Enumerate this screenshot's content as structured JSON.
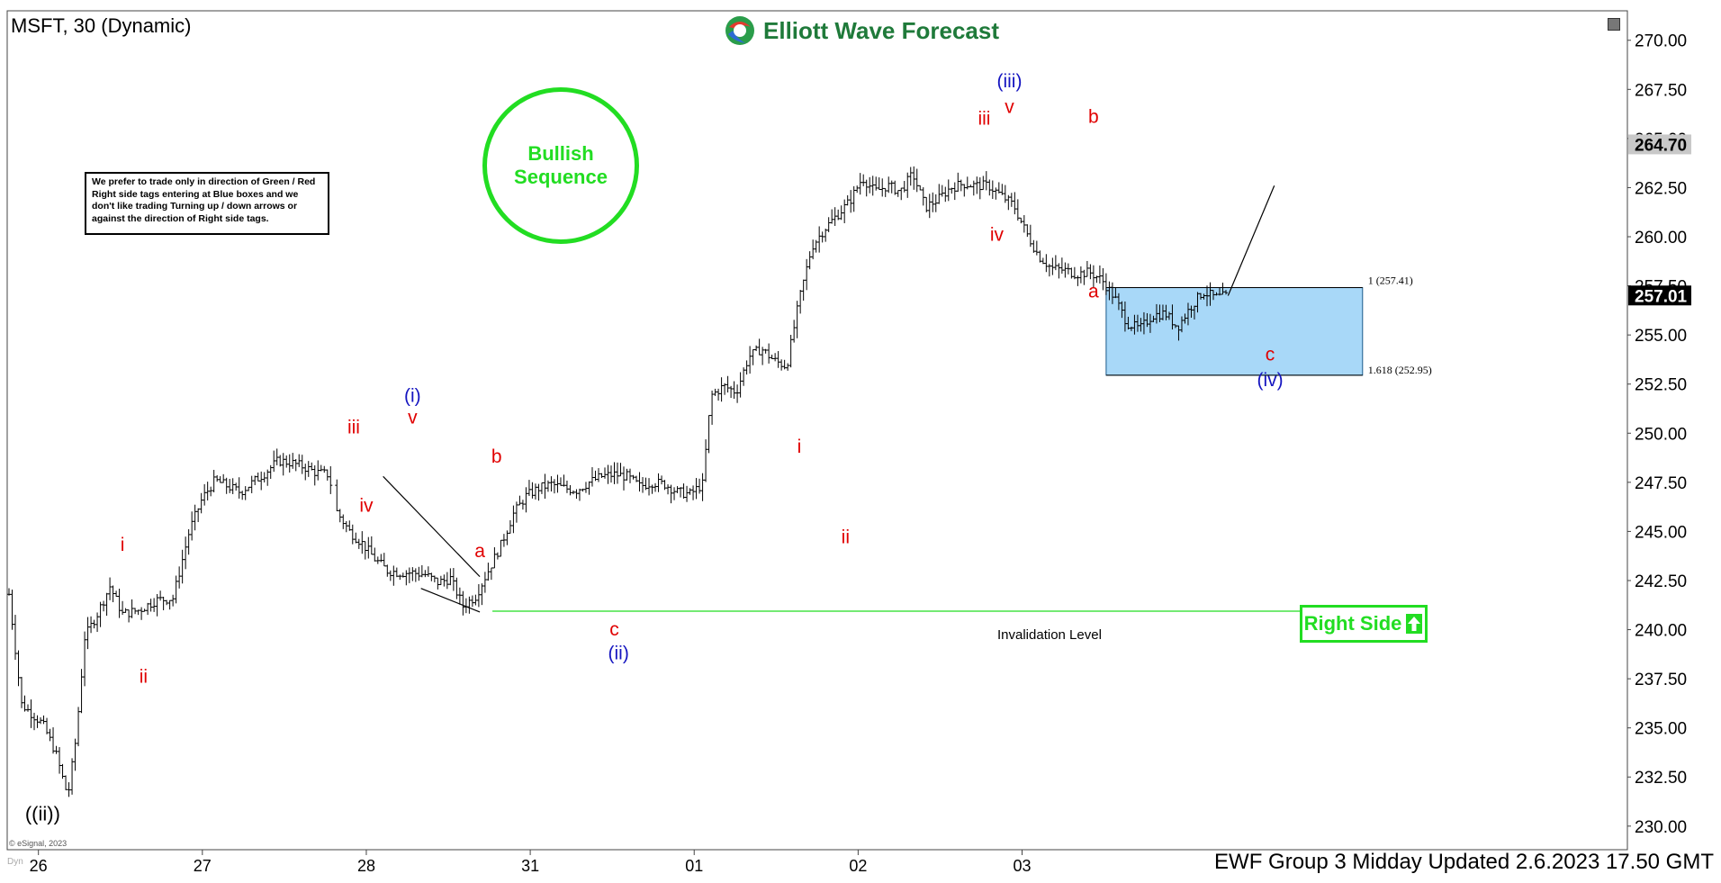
{
  "window": {
    "symbol_title": "MSFT, 30 (Dynamic)",
    "logo_text": "Elliott Wave Forecast",
    "logo_icon": "ewf-globe-icon",
    "footer": "EWF Group 3 Midday Updated 2.6.2023 17.50 GMT",
    "copyright": "© eSignal, 2023",
    "corner_label": "Dyn"
  },
  "annotations": {
    "note_text": "We prefer to trade only in direction of Green / Red Right side tags entering at Blue boxes and we don't like trading Turning up / down arrows or against the direction of Right side tags.",
    "bullish_text": "Bullish\nSequence",
    "right_side_text": "Right Side",
    "invalidation_label": "Invalidation Level",
    "invalidation_value": "240.94",
    "box_upper_label": "1 (257.41)",
    "box_lower_label": "1.618 (252.95)"
  },
  "colors": {
    "wave_red": "#e00000",
    "wave_blue": "#1515c0",
    "green": "#22dd22",
    "blue_box_fill": "#a8d8f8",
    "price_bar": "#000000"
  },
  "chart_data": {
    "type": "ohlc",
    "title": "MSFT, 30 (Dynamic)",
    "ylim": [
      228.8,
      271.5
    ],
    "x_ticks": [
      {
        "label": "26",
        "x": 7
      },
      {
        "label": "27",
        "x": 46
      },
      {
        "label": "28",
        "x": 85
      },
      {
        "label": "31",
        "x": 124
      },
      {
        "label": "01",
        "x": 163
      },
      {
        "label": "02",
        "x": 202
      },
      {
        "label": "03",
        "x": 241
      }
    ],
    "xlim": [
      0,
      385
    ],
    "y_ticks": [
      "270.00",
      "267.50",
      "265.00",
      "262.50",
      "260.00",
      "257.50",
      "255.00",
      "252.50",
      "250.00",
      "247.50",
      "245.00",
      "242.50",
      "240.00",
      "237.50",
      "235.00",
      "232.50",
      "230.00"
    ],
    "last_price": "257.01",
    "high_marker": "264.70",
    "price_path": [
      [
        0,
        241.8
      ],
      [
        3,
        236.2
      ],
      [
        8,
        235.2
      ],
      [
        11,
        233.8
      ],
      [
        14,
        231.5
      ],
      [
        16,
        234.6
      ],
      [
        18,
        239.6
      ],
      [
        21,
        240.8
      ],
      [
        24,
        242.2
      ],
      [
        27,
        240.8
      ],
      [
        31,
        241.0
      ],
      [
        35,
        241.5
      ],
      [
        39,
        241.6
      ],
      [
        43,
        245.1
      ],
      [
        46,
        246.7
      ],
      [
        49,
        247.6
      ],
      [
        52,
        247.3
      ],
      [
        55,
        247.0
      ],
      [
        58,
        247.5
      ],
      [
        61,
        248.0
      ],
      [
        64,
        248.6
      ],
      [
        67,
        248.5
      ],
      [
        70,
        248.3
      ],
      [
        73,
        248.0
      ],
      [
        76,
        247.9
      ],
      [
        78,
        246.0
      ],
      [
        81,
        245.0
      ],
      [
        84,
        244.4
      ],
      [
        87,
        243.6
      ],
      [
        90,
        243.0
      ],
      [
        93,
        242.9
      ],
      [
        96,
        242.9
      ],
      [
        99,
        242.8
      ],
      [
        102,
        242.4
      ],
      [
        105,
        242.6
      ],
      [
        108,
        241.2
      ],
      [
        111,
        241.7
      ],
      [
        114,
        243.0
      ],
      [
        117,
        244.3
      ],
      [
        120,
        245.9
      ],
      [
        123,
        246.8
      ],
      [
        126,
        247.2
      ],
      [
        129,
        247.4
      ],
      [
        132,
        247.2
      ],
      [
        135,
        247.1
      ],
      [
        138,
        247.5
      ],
      [
        141,
        247.8
      ],
      [
        144,
        247.9
      ],
      [
        147,
        247.8
      ],
      [
        150,
        247.3
      ],
      [
        153,
        247.5
      ],
      [
        156,
        247.4
      ],
      [
        159,
        247.0
      ],
      [
        162,
        246.9
      ],
      [
        165,
        247.4
      ],
      [
        167,
        251.9
      ],
      [
        170,
        252.4
      ],
      [
        173,
        252.1
      ],
      [
        176,
        253.9
      ],
      [
        179,
        254.3
      ],
      [
        182,
        253.7
      ],
      [
        185,
        253.4
      ],
      [
        188,
        256.8
      ],
      [
        191,
        259.5
      ],
      [
        194,
        260.4
      ],
      [
        197,
        261.1
      ],
      [
        200,
        261.8
      ],
      [
        203,
        263.0
      ],
      [
        206,
        262.3
      ],
      [
        209,
        262.6
      ],
      [
        212,
        262.3
      ],
      [
        215,
        263.2
      ],
      [
        218,
        261.5
      ],
      [
        221,
        261.9
      ],
      [
        224,
        262.5
      ],
      [
        227,
        262.7
      ],
      [
        230,
        262.6
      ],
      [
        233,
        262.6
      ],
      [
        236,
        262.1
      ],
      [
        239,
        261.6
      ],
      [
        242,
        260.2
      ],
      [
        245,
        259.0
      ],
      [
        248,
        258.4
      ],
      [
        251,
        258.3
      ],
      [
        254,
        258.1
      ],
      [
        257,
        258.2
      ],
      [
        260,
        257.8
      ],
      [
        263,
        256.9
      ],
      [
        266,
        255.6
      ],
      [
        269,
        255.3
      ],
      [
        272,
        256.0
      ],
      [
        275,
        256.1
      ],
      [
        278,
        255.4
      ],
      [
        281,
        256.4
      ],
      [
        284,
        257.2
      ],
      [
        287,
        256.9
      ],
      [
        290,
        257.0
      ]
    ],
    "lines": [
      {
        "name": "projection-arrow",
        "from": [
          290,
          257.0
        ],
        "to": [
          301,
          262.6
        ]
      },
      {
        "name": "triangle-upper",
        "from": [
          89,
          247.8
        ],
        "to": [
          112,
          242.7
        ]
      },
      {
        "name": "triangle-lower",
        "from": [
          98,
          242.1
        ],
        "to": [
          112,
          240.9
        ]
      }
    ],
    "invalidation": {
      "y": 240.94,
      "x_from": 115,
      "x_to": 320
    },
    "blue_box": {
      "x_from": 261,
      "x_to": 322,
      "y_top": 257.41,
      "y_bottom": 252.95
    },
    "wave_labels": [
      {
        "text": "((ii))",
        "x": 8,
        "y": 230.3,
        "color": "black"
      },
      {
        "text": "i",
        "x": 27,
        "y": 244.0,
        "color": "red"
      },
      {
        "text": "ii",
        "x": 32,
        "y": 237.3,
        "color": "red"
      },
      {
        "text": "iii",
        "x": 82,
        "y": 250.0,
        "color": "red"
      },
      {
        "text": "iv",
        "x": 85,
        "y": 246.0,
        "color": "red"
      },
      {
        "text": "v",
        "x": 96,
        "y": 250.5,
        "color": "red"
      },
      {
        "text": "(i)",
        "x": 96,
        "y": 251.6,
        "color": "blue"
      },
      {
        "text": "a",
        "x": 112,
        "y": 243.7,
        "color": "red"
      },
      {
        "text": "b",
        "x": 116,
        "y": 248.5,
        "color": "red"
      },
      {
        "text": "c",
        "x": 144,
        "y": 239.7,
        "color": "red"
      },
      {
        "text": "(ii)",
        "x": 145,
        "y": 238.5,
        "color": "blue"
      },
      {
        "text": "i",
        "x": 188,
        "y": 249.0,
        "color": "red"
      },
      {
        "text": "ii",
        "x": 199,
        "y": 244.4,
        "color": "red"
      },
      {
        "text": "iii",
        "x": 232,
        "y": 265.7,
        "color": "red"
      },
      {
        "text": "iv",
        "x": 235,
        "y": 259.8,
        "color": "red"
      },
      {
        "text": "v",
        "x": 238,
        "y": 266.3,
        "color": "red"
      },
      {
        "text": "(iii)",
        "x": 238,
        "y": 267.6,
        "color": "blue"
      },
      {
        "text": "b",
        "x": 258,
        "y": 265.8,
        "color": "red"
      },
      {
        "text": "a",
        "x": 258,
        "y": 256.9,
        "color": "red"
      },
      {
        "text": "c",
        "x": 300,
        "y": 253.7,
        "color": "red"
      },
      {
        "text": "(iv)",
        "x": 300,
        "y": 252.4,
        "color": "blue"
      }
    ]
  }
}
